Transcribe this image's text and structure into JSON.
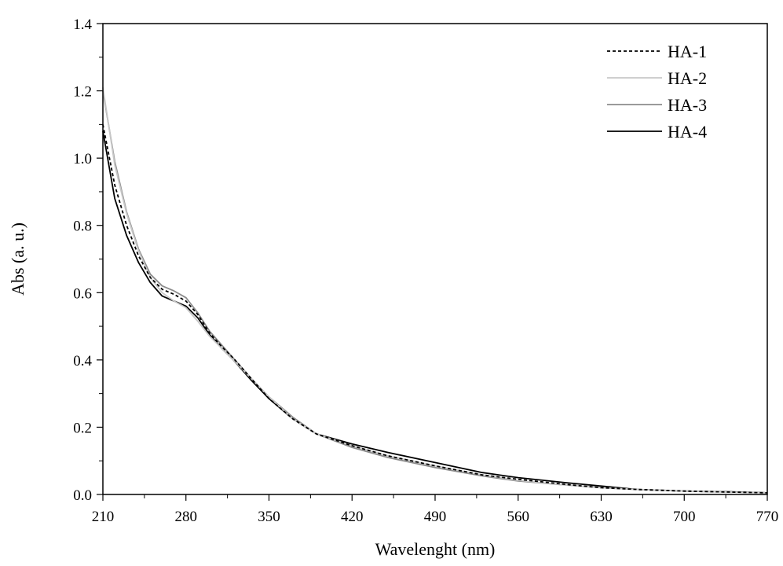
{
  "chart_data": {
    "type": "line",
    "title": "",
    "xlabel": "Wavelenght (nm)",
    "ylabel": "Abs (a. u.)",
    "xlim": [
      210,
      770
    ],
    "ylim": [
      0.0,
      1.4
    ],
    "xticks": [
      210,
      280,
      350,
      420,
      490,
      560,
      630,
      700,
      770
    ],
    "yticks": [
      0.0,
      0.2,
      0.4,
      0.6,
      0.8,
      1.0,
      1.2,
      1.4
    ],
    "xtick_labels": [
      "210",
      "280",
      "350",
      "420",
      "490",
      "560",
      "630",
      "700",
      "770"
    ],
    "ytick_labels": [
      "0.0",
      "0.2",
      "0.4",
      "0.6",
      "0.8",
      "1.0",
      "1.2",
      "1.4"
    ],
    "grid": false,
    "legend_position": "top-right",
    "series": [
      {
        "name": "HA-1",
        "color": "#000000",
        "dash": "dashed",
        "x": [
          210,
          220,
          230,
          240,
          250,
          260,
          270,
          280,
          290,
          300,
          310,
          320,
          335,
          350,
          370,
          390,
          420,
          450,
          490,
          530,
          560,
          600,
          630,
          660,
          700,
          740,
          770
        ],
        "y": [
          1.1,
          0.92,
          0.8,
          0.71,
          0.645,
          0.61,
          0.595,
          0.575,
          0.535,
          0.48,
          0.44,
          0.405,
          0.345,
          0.285,
          0.225,
          0.18,
          0.145,
          0.115,
          0.085,
          0.058,
          0.045,
          0.03,
          0.02,
          0.015,
          0.01,
          0.007,
          0.005
        ]
      },
      {
        "name": "HA-2",
        "color": "#c8c8c8",
        "dash": "solid",
        "x": [
          210,
          220,
          230,
          240,
          250,
          260,
          270,
          280,
          290,
          300,
          310,
          320,
          335,
          350,
          370,
          390,
          420,
          450,
          490,
          530,
          560,
          600,
          630,
          660,
          700,
          740,
          770
        ],
        "y": [
          1.21,
          0.98,
          0.835,
          0.725,
          0.645,
          0.6,
          0.575,
          0.555,
          0.515,
          0.47,
          0.435,
          0.4,
          0.345,
          0.29,
          0.225,
          0.18,
          0.145,
          0.115,
          0.085,
          0.058,
          0.042,
          0.028,
          0.02,
          0.015,
          0.01,
          0.007,
          0.005
        ]
      },
      {
        "name": "HA-3",
        "color": "#8c8c8c",
        "dash": "solid",
        "x": [
          210,
          220,
          230,
          240,
          250,
          260,
          270,
          280,
          290,
          300,
          310,
          320,
          335,
          350,
          370,
          390,
          420,
          450,
          490,
          530,
          560,
          600,
          630,
          660,
          700,
          740,
          770
        ],
        "y": [
          1.2,
          0.99,
          0.84,
          0.73,
          0.655,
          0.62,
          0.605,
          0.585,
          0.54,
          0.485,
          0.445,
          0.405,
          0.345,
          0.29,
          0.23,
          0.18,
          0.14,
          0.11,
          0.08,
          0.055,
          0.04,
          0.028,
          0.02,
          0.015,
          0.01,
          0.007,
          0.005
        ]
      },
      {
        "name": "HA-4",
        "color": "#000000",
        "dash": "solid",
        "x": [
          210,
          220,
          230,
          240,
          250,
          260,
          270,
          280,
          290,
          300,
          310,
          320,
          335,
          350,
          370,
          390,
          420,
          450,
          490,
          530,
          560,
          600,
          630,
          660,
          700,
          740,
          770
        ],
        "y": [
          1.08,
          0.88,
          0.77,
          0.69,
          0.63,
          0.59,
          0.575,
          0.56,
          0.525,
          0.475,
          0.435,
          0.4,
          0.34,
          0.285,
          0.225,
          0.18,
          0.15,
          0.125,
          0.095,
          0.065,
          0.05,
          0.035,
          0.025,
          0.015,
          0.01,
          0.008,
          0.005
        ]
      }
    ]
  }
}
